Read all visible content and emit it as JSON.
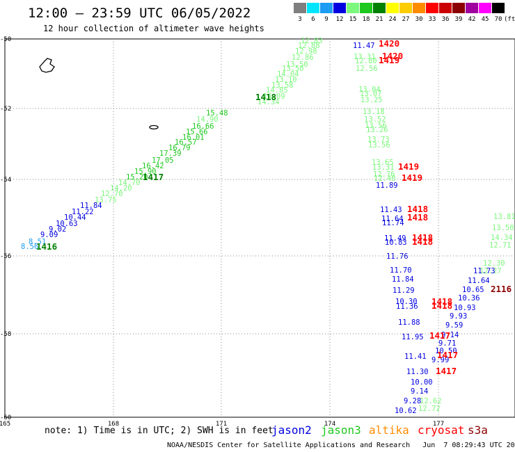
{
  "header": {
    "title": "12:00 – 23:59 UTC 06/05/2022",
    "subtitle": "12 hour collection of altimeter wave heights"
  },
  "color_scale": {
    "unit": "(ft)",
    "bins": [
      {
        "label": "3",
        "color": "#7f7f7f"
      },
      {
        "label": "6",
        "color": "#00e5ff"
      },
      {
        "label": "9",
        "color": "#1c9cf2"
      },
      {
        "label": "12",
        "color": "#0000e0"
      },
      {
        "label": "15",
        "color": "#7cf87c"
      },
      {
        "label": "18",
        "color": "#1ec81e"
      },
      {
        "label": "21",
        "color": "#008000"
      },
      {
        "label": "24",
        "color": "#ffff00"
      },
      {
        "label": "27",
        "color": "#ffcc00"
      },
      {
        "label": "30",
        "color": "#ff8c00"
      },
      {
        "label": "33",
        "color": "#ff0000"
      },
      {
        "label": "36",
        "color": "#cc0000"
      },
      {
        "label": "39",
        "color": "#8b0000"
      },
      {
        "label": "42",
        "color": "#a000a0"
      },
      {
        "label": "45",
        "color": "#ff00ff"
      },
      {
        "label": "70",
        "color": "#000000"
      }
    ]
  },
  "axes": {
    "lon_ticks": [
      "165",
      "168",
      "171",
      "174",
      "177"
    ],
    "lat_ticks": [
      "-50",
      "-52",
      "-54",
      "-56",
      "-58",
      "-60"
    ]
  },
  "observations": [
    {
      "v": "12.83",
      "c": "#7cf87c"
    },
    {
      "v": "12.88",
      "c": "#7cf87c"
    },
    {
      "v": "12.98",
      "c": "#7cf87c"
    },
    {
      "v": "12.86",
      "c": "#7cf87c"
    },
    {
      "v": "13.50",
      "c": "#7cf87c"
    },
    {
      "v": "13.50",
      "c": "#7cf87c"
    },
    {
      "v": "14.04",
      "c": "#7cf87c"
    },
    {
      "v": "13.10",
      "c": "#7cf87c"
    },
    {
      "v": "13.58",
      "c": "#7cf87c"
    },
    {
      "v": "14.85",
      "c": "#7cf87c"
    },
    {
      "v": "14.09",
      "c": "#7cf87c"
    },
    {
      "v": "14.34",
      "c": "#7cf87c"
    },
    {
      "v": "15.48",
      "c": "#1ec81e"
    },
    {
      "v": "14.90",
      "c": "#7cf87c"
    },
    {
      "v": "16.66",
      "c": "#1ec81e"
    },
    {
      "v": "15.66",
      "c": "#1ec81e"
    },
    {
      "v": "16.01",
      "c": "#1ec81e"
    },
    {
      "v": "16.57",
      "c": "#1ec81e"
    },
    {
      "v": "16.79",
      "c": "#1ec81e"
    },
    {
      "v": "17.39",
      "c": "#1ec81e"
    },
    {
      "v": "17.05",
      "c": "#1ec81e"
    },
    {
      "v": "16.42",
      "c": "#1ec81e"
    },
    {
      "v": "15.90",
      "c": "#1ec81e"
    },
    {
      "v": "15.20",
      "c": "#1ec81e"
    },
    {
      "v": "14.70",
      "c": "#7cf87c"
    },
    {
      "v": "14.20",
      "c": "#7cf87c"
    },
    {
      "v": "12.70",
      "c": "#7cf87c"
    },
    {
      "v": "13.75",
      "c": "#7cf87c"
    },
    {
      "v": "11.84",
      "c": "#0000e0"
    },
    {
      "v": "11.22",
      "c": "#0000e0"
    },
    {
      "v": "10.44",
      "c": "#0000e0"
    },
    {
      "v": "10.63",
      "c": "#0000e0"
    },
    {
      "v": "9.02",
      "c": "#0000e0"
    },
    {
      "v": "9.09",
      "c": "#0000e0"
    },
    {
      "v": "8.51",
      "c": "#1c9cf2"
    },
    {
      "v": "8.56",
      "c": "#1c9cf2"
    },
    {
      "v": "11.47",
      "c": "#0000e0"
    },
    {
      "v": "13.31",
      "c": "#7cf87c"
    },
    {
      "v": "12.80",
      "c": "#7cf87c"
    },
    {
      "v": "12.56",
      "c": "#7cf87c"
    },
    {
      "v": "13.04",
      "c": "#7cf87c"
    },
    {
      "v": "13.07",
      "c": "#7cf87c"
    },
    {
      "v": "13.25",
      "c": "#7cf87c"
    },
    {
      "v": "13.18",
      "c": "#7cf87c"
    },
    {
      "v": "13.52",
      "c": "#7cf87c"
    },
    {
      "v": "13.56",
      "c": "#7cf87c"
    },
    {
      "v": "13.26",
      "c": "#7cf87c"
    },
    {
      "v": "13.73",
      "c": "#7cf87c"
    },
    {
      "v": "13.56",
      "c": "#7cf87c"
    },
    {
      "v": "13.65",
      "c": "#7cf87c"
    },
    {
      "v": "13.31",
      "c": "#7cf87c"
    },
    {
      "v": "12.76",
      "c": "#7cf87c"
    },
    {
      "v": "12.40",
      "c": "#7cf87c"
    },
    {
      "v": "11.89",
      "c": "#0000e0"
    },
    {
      "v": "11.43",
      "c": "#0000e0"
    },
    {
      "v": "11.64",
      "c": "#0000e0"
    },
    {
      "v": "11.74",
      "c": "#0000e0"
    },
    {
      "v": "11.49",
      "c": "#0000e0"
    },
    {
      "v": "10.83",
      "c": "#0000e0"
    },
    {
      "v": "11.76",
      "c": "#0000e0"
    },
    {
      "v": "11.70",
      "c": "#0000e0"
    },
    {
      "v": "11.84",
      "c": "#0000e0"
    },
    {
      "v": "11.29",
      "c": "#0000e0"
    },
    {
      "v": "10.30",
      "c": "#0000e0"
    },
    {
      "v": "11.36",
      "c": "#0000e0"
    },
    {
      "v": "11.88",
      "c": "#0000e0"
    },
    {
      "v": "11.95",
      "c": "#0000e0"
    },
    {
      "v": "11.41",
      "c": "#0000e0"
    },
    {
      "v": "11.30",
      "c": "#0000e0"
    },
    {
      "v": "10.00",
      "c": "#0000e0"
    },
    {
      "v": "9.14",
      "c": "#0000e0"
    },
    {
      "v": "9.28",
      "c": "#0000e0"
    },
    {
      "v": "10.62",
      "c": "#0000e0"
    },
    {
      "v": "12.62",
      "c": "#7cf87c"
    },
    {
      "v": "12.72",
      "c": "#7cf87c"
    },
    {
      "v": "13.81",
      "c": "#7cf87c"
    },
    {
      "v": "13.50",
      "c": "#7cf87c"
    },
    {
      "v": "14.34",
      "c": "#7cf87c"
    },
    {
      "v": "12.71",
      "c": "#7cf87c"
    },
    {
      "v": "12.30",
      "c": "#7cf87c"
    },
    {
      "v": "12.27",
      "c": "#7cf87c"
    },
    {
      "v": "11.73",
      "c": "#0000e0"
    },
    {
      "v": "11.64",
      "c": "#0000e0"
    },
    {
      "v": "10.65",
      "c": "#0000e0"
    },
    {
      "v": "10.36",
      "c": "#0000e0"
    },
    {
      "v": "10.93",
      "c": "#0000e0"
    },
    {
      "v": "9.93",
      "c": "#0000e0"
    },
    {
      "v": "9.59",
      "c": "#0000e0"
    },
    {
      "v": "9.14",
      "c": "#0000e0"
    },
    {
      "v": "9.71",
      "c": "#0000e0"
    },
    {
      "v": "10.50",
      "c": "#0000e0"
    },
    {
      "v": "9.99",
      "c": "#0000e0"
    }
  ],
  "time_labels": [
    {
      "v": "1420",
      "c": "#ff0000"
    },
    {
      "v": "1420",
      "c": "#ff0000"
    },
    {
      "v": "1419",
      "c": "#ff0000"
    },
    {
      "v": "1418",
      "c": "#008000"
    },
    {
      "v": "1417",
      "c": "#008000"
    },
    {
      "v": "1416",
      "c": "#008000"
    },
    {
      "v": "1419",
      "c": "#ff0000"
    },
    {
      "v": "1419",
      "c": "#ff0000"
    },
    {
      "v": "1418",
      "c": "#ff0000"
    },
    {
      "v": "1418",
      "c": "#ff0000"
    },
    {
      "v": "1418",
      "c": "#ff0000"
    },
    {
      "v": "1418",
      "c": "#ff0000"
    },
    {
      "v": "1418",
      "c": "#ff0000"
    },
    {
      "v": "1418",
      "c": "#ff0000"
    },
    {
      "v": "1417",
      "c": "#ff0000"
    },
    {
      "v": "1417",
      "c": "#ff0000"
    },
    {
      "v": "1417",
      "c": "#ff0000"
    },
    {
      "v": "2116",
      "c": "#8b0000"
    }
  ],
  "footer": {
    "note": "note: 1) Time is in UTC; 2) SWH is in feet",
    "satellites": [
      {
        "name": "jason2",
        "color": "#0000e0"
      },
      {
        "name": "jason3",
        "color": "#1ec81e"
      },
      {
        "name": "altika",
        "color": "#ff8c00"
      },
      {
        "name": "cryosat",
        "color": "#ff0000"
      },
      {
        "name": "s3a",
        "color": "#8b0000"
      }
    ],
    "credit": "NOAA/NESDIS Center for Satellite Applications and Research   Jun  7 08:29:43 UTC 2022"
  }
}
